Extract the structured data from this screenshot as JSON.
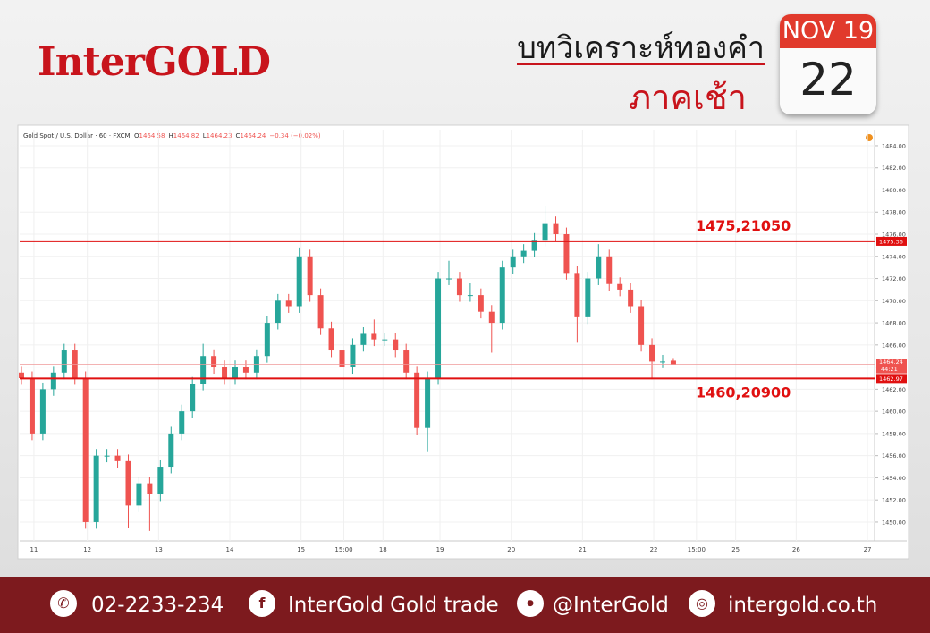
{
  "header": {
    "logo": "InterGOLD",
    "title": "บทวิเคราะห์ทองคำ",
    "subtitle": "ภาคเช้า",
    "month_year": "NOV 19",
    "day": "22"
  },
  "chart_data": {
    "type": "candlestick",
    "title": "Gold Spot / U.S. Dollar · 60 · FXCM",
    "ohlc_labels": [
      "O",
      "H",
      "L",
      "C"
    ],
    "change": "−0.34 (−0.02%)",
    "x": [
      0.5,
      3.5,
      6.5,
      9.5,
      12.5,
      15.5,
      18.5,
      21.5,
      24.5,
      27.5,
      30.5,
      33.5,
      36.5,
      39.5,
      42.5,
      45.5,
      48.5,
      51.5,
      54.5,
      57.5,
      60.5,
      63.5,
      66.5,
      69.5,
      72.5,
      75.5,
      78.5,
      81.5,
      84.5,
      87.5,
      90.5,
      93.5,
      96.5,
      99.5,
      102.5,
      105.5,
      108.5,
      111.5,
      114.5,
      117.5,
      120.5,
      123.5,
      126.5,
      129.5,
      132.5,
      135.5,
      138.5,
      141.5,
      144.5,
      147.5,
      150.5,
      153.5,
      156.5,
      159.5,
      162.5,
      165.5,
      168.5,
      171.5,
      174.5,
      177.5,
      180.5,
      183.5
    ],
    "open": [
      1463.5,
      1463,
      1458,
      1462,
      1463.5,
      1465.5,
      1463,
      1450,
      1456,
      1456,
      1455.5,
      1451.5,
      1453.5,
      1452.5,
      1455,
      1458,
      1460,
      1462.5,
      1465,
      1464,
      1463,
      1464,
      1463.5,
      1465,
      1468,
      1470,
      1469.5,
      1474,
      1470.5,
      1467.5,
      1465.5,
      1464,
      1466,
      1467,
      1466.5,
      1466.5,
      1465.5,
      1463.5,
      1458.5,
      1463,
      1472,
      1472,
      1470.5,
      1470.5,
      1469,
      1468,
      1473,
      1474,
      1474.5,
      1475.5,
      1477,
      1476,
      1472.5,
      1468.5,
      1472,
      1474,
      1471.5,
      1471,
      1469.5,
      1466,
      1464.5,
      1464.58
    ],
    "high": [
      1464.1,
      1463.6,
      1462.6,
      1464.1,
      1466.1,
      1466.1,
      1463.6,
      1456.6,
      1456.6,
      1456.6,
      1456.1,
      1454.1,
      1454.1,
      1455.6,
      1458.6,
      1460.6,
      1463.1,
      1466.1,
      1465.6,
      1464.6,
      1464.6,
      1464.6,
      1465.6,
      1468.6,
      1470.6,
      1470.6,
      1474.8,
      1474.6,
      1471.1,
      1468.1,
      1466.1,
      1466.6,
      1467.6,
      1468.3,
      1467.1,
      1467.1,
      1466.1,
      1464.1,
      1463.6,
      1472.6,
      1473.6,
      1472.6,
      1471.6,
      1471.1,
      1469.6,
      1473.6,
      1474.6,
      1475.1,
      1476.1,
      1478.6,
      1477.6,
      1476.6,
      1473.1,
      1472.6,
      1475.1,
      1474.6,
      1472.1,
      1471.6,
      1470.1,
      1466.6,
      1465.1,
      1464.82
    ],
    "low": [
      1462.4,
      1457.4,
      1457.4,
      1461.4,
      1462.9,
      1462.4,
      1449.4,
      1449.4,
      1455.4,
      1454.9,
      1449.5,
      1450.9,
      1449.2,
      1451.9,
      1454.4,
      1457.4,
      1459.4,
      1461.9,
      1463.4,
      1462.4,
      1462.4,
      1462.9,
      1462.9,
      1464.4,
      1467.4,
      1468.9,
      1468.9,
      1469.9,
      1466.9,
      1464.9,
      1463.1,
      1463.4,
      1465.4,
      1465.9,
      1465.9,
      1464.9,
      1462.9,
      1457.9,
      1456.4,
      1462.4,
      1471.4,
      1469.9,
      1469.9,
      1468.4,
      1465.3,
      1467.4,
      1472.4,
      1473.4,
      1473.9,
      1474.9,
      1475.4,
      1471.9,
      1466.2,
      1467.9,
      1471.4,
      1470.9,
      1470.4,
      1468.9,
      1465.4,
      1462.9,
      1463.9,
      1464.23
    ],
    "close": [
      1463,
      1458,
      1462,
      1463.5,
      1465.5,
      1463,
      1450,
      1456,
      1456,
      1455.5,
      1451.5,
      1453.5,
      1452.5,
      1455,
      1458,
      1460,
      1462.5,
      1465,
      1464,
      1463,
      1464,
      1463.5,
      1465,
      1468,
      1470,
      1469.5,
      1474,
      1470.5,
      1467.5,
      1465.5,
      1464,
      1466,
      1467,
      1466.5,
      1466.5,
      1465.5,
      1463.5,
      1458.5,
      1463,
      1472,
      1472,
      1470.5,
      1470.5,
      1469,
      1468,
      1473,
      1474,
      1474.5,
      1475.5,
      1477,
      1476,
      1472.5,
      1468.5,
      1472,
      1474,
      1471.5,
      1471,
      1469.5,
      1466,
      1464.5,
      1464.5,
      1464.24
    ],
    "up_color": "#26a69a",
    "down_color": "#ef5350",
    "xlim": [
      0,
      240
    ],
    "xticks": [
      {
        "value": 4,
        "label": "11"
      },
      {
        "value": 19,
        "label": "12"
      },
      {
        "value": 39,
        "label": "13"
      },
      {
        "value": 59,
        "label": "14"
      },
      {
        "value": 79,
        "label": "15"
      },
      {
        "value": 91,
        "label": "15:00"
      },
      {
        "value": 102,
        "label": "18"
      },
      {
        "value": 118,
        "label": "19"
      },
      {
        "value": 138,
        "label": "20"
      },
      {
        "value": 158,
        "label": "21"
      },
      {
        "value": 178,
        "label": "22"
      },
      {
        "value": 190,
        "label": "15:00"
      },
      {
        "value": 201,
        "label": "25"
      },
      {
        "value": 218,
        "label": "26"
      },
      {
        "value": 238,
        "label": "27"
      }
    ],
    "ylim": [
      1448.3,
      1485.45
    ],
    "yticks": [
      {
        "value": 1450,
        "label": "1450.00"
      },
      {
        "value": 1452,
        "label": "1452.00"
      },
      {
        "value": 1454,
        "label": "1454.00"
      },
      {
        "value": 1456,
        "label": "1456.00"
      },
      {
        "value": 1458,
        "label": "1458.00"
      },
      {
        "value": 1460,
        "label": "1460.00"
      },
      {
        "value": 1462,
        "label": "1462.00"
      },
      {
        "value": 1464,
        "label": "1464.00"
      },
      {
        "value": 1466,
        "label": "1466.00"
      },
      {
        "value": 1468,
        "label": "1468.00"
      },
      {
        "value": 1470,
        "label": "1470.00"
      },
      {
        "value": 1472,
        "label": "1472.00"
      },
      {
        "value": 1474,
        "label": "1474.00"
      },
      {
        "value": 1476,
        "label": "1476.00"
      },
      {
        "value": 1478,
        "label": "1478.00"
      },
      {
        "value": 1480,
        "label": "1480.00"
      },
      {
        "value": 1482,
        "label": "1482.00"
      },
      {
        "value": 1484,
        "label": "1484.00"
      }
    ],
    "grid": true,
    "levels": [
      {
        "value": 1475.36,
        "annotation": "1475,21050",
        "color": "#e01010"
      },
      {
        "value": 1462.97,
        "annotation": "1460,20900",
        "color": "#e01010"
      }
    ],
    "last_price": 1464.24,
    "countdown": "44:21"
  },
  "footer": {
    "phone": "02-2233-234",
    "facebook": "InterGold Gold trade",
    "line": "@InterGold",
    "website": "intergold.co.th"
  }
}
